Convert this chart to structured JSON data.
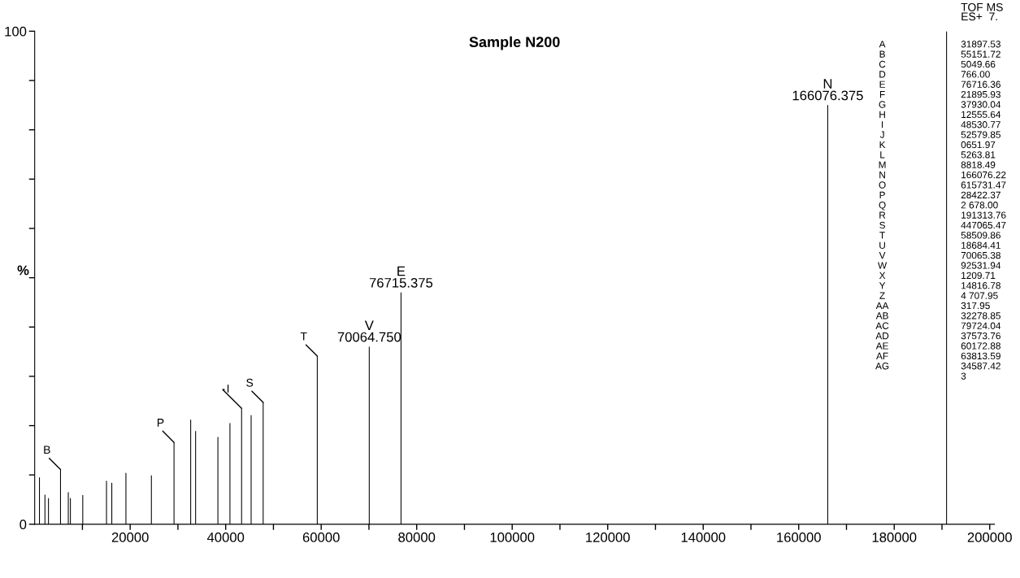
{
  "chart_data": {
    "type": "bar",
    "title": "Sample N200",
    "ylabel": "%",
    "x": [
      1000,
      2150,
      2890,
      5410,
      7040,
      7480,
      10070,
      15040,
      16150,
      19110,
      24440,
      29180,
      32670,
      33700,
      38370,
      40890,
      43330,
      45330,
      47850,
      59180,
      70065,
      76715,
      166076,
      190960
    ],
    "values": [
      9.5,
      6.0,
      5.3,
      11.1,
      6.5,
      5.3,
      5.9,
      8.8,
      8.4,
      10.4,
      9.9,
      16.6,
      21.2,
      18.9,
      17.7,
      20.5,
      23.5,
      22.1,
      24.7,
      34.1,
      36,
      47,
      85,
      100
    ],
    "color": "#000000",
    "xlim": [
      0,
      201000
    ],
    "ylim": [
      0,
      100
    ],
    "xticks": [
      {
        "value": 10000,
        "label": null
      },
      20000,
      {
        "value": 30000,
        "label": null
      },
      40000,
      {
        "value": 50000,
        "label": null
      },
      60000,
      {
        "value": 70000,
        "label": null
      },
      80000,
      {
        "value": 90000,
        "label": null
      },
      100000,
      {
        "value": 110000,
        "label": null
      },
      120000,
      {
        "value": 130000,
        "label": null
      },
      140000,
      {
        "value": 150000,
        "label": null
      },
      160000,
      {
        "value": 170000,
        "label": null
      },
      180000,
      {
        "value": 190000,
        "label": null
      },
      200000
    ],
    "yticks": [
      0,
      {
        "value": 10,
        "label": null
      },
      {
        "value": 20,
        "label": null
      },
      {
        "value": 30,
        "label": null
      },
      {
        "value": 40,
        "label": null
      },
      {
        "value": 50,
        "label": null
      },
      {
        "value": 60,
        "label": null
      },
      {
        "value": 70,
        "label": null
      },
      {
        "value": 80,
        "label": null
      },
      {
        "value": 90,
        "label": null
      },
      100
    ],
    "grid": false,
    "annotations": [
      {
        "text": "B",
        "x": 5410,
        "y": 11.1
      },
      {
        "text": "P",
        "x": 29180,
        "y": 16.6
      },
      {
        "text": "I",
        "x": 43330,
        "y": 23.5
      },
      {
        "text": "S",
        "x": 47850,
        "y": 24.7
      },
      {
        "text": "T",
        "x": 59180,
        "y": 34.1
      },
      {
        "text": "V\n70064.750",
        "x": 70065,
        "y": 36
      },
      {
        "text": "E\n76715.375",
        "x": 76715,
        "y": 47
      },
      {
        "text": "N\n166076.375",
        "x": 166076,
        "y": 85
      },
      "TOF MS\nES+  7.",
      "A\nB\nC\nD\nE\nF\nG\nH\nI\nJ\nK\nL\nM\nN\nO\nP\nQ\nR\nS\nT\nU\nV\nW\nX\nY\nZ\nAA\nAB\nAC\nAD\nAE\nAF\nAG",
      "31897.53\n55151.72\n5049.66\n766.00\n76716.36\n21895.93\n37930.04\n12555.64\n48530.77\n52579.85\n0651.97\n5263.81\n8818.49\n166076.22\n615731.47\n28422.37\n2 678.00\n191313.76\n447065.47\n58509.86\n18684.41\n70065.38\n92531.94\n1209.71\n14816.78\n4 707.95\n317.95\n32278.85\n79724.04\n37573.76\n60172.88\n63813.59\n34587.42\n3"
    ]
  }
}
